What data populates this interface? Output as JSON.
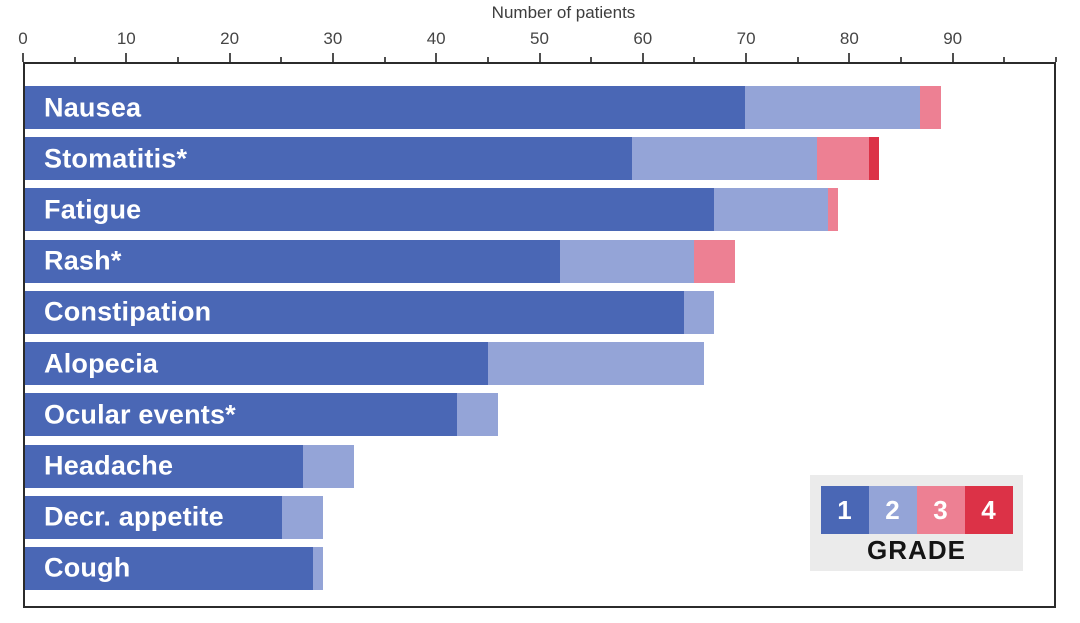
{
  "chart_data": {
    "type": "bar",
    "orientation": "horizontal",
    "stacked": true,
    "title": "Number of patients",
    "xlabel": "Number of patients",
    "xlim": [
      0,
      100
    ],
    "x_major_ticks": [
      0,
      10,
      20,
      30,
      40,
      50,
      60,
      70,
      80,
      90
    ],
    "x_minor_tick_step": 5,
    "grid": false,
    "legend_position": "bottom-right",
    "categories": [
      "Nausea",
      "Stomatitis*",
      "Fatigue",
      "Rash*",
      "Constipation",
      "Alopecia",
      "Ocular events*",
      "Headache",
      "Decr. appetite",
      "Cough"
    ],
    "series": [
      {
        "name": "Grade 1",
        "color": "#4a67b5",
        "values": [
          70,
          59,
          67,
          52,
          64,
          45,
          42,
          27,
          25,
          28
        ]
      },
      {
        "name": "Grade 2",
        "color": "#94a4d7",
        "values": [
          17,
          18,
          11,
          13,
          3,
          21,
          4,
          5,
          4,
          1
        ]
      },
      {
        "name": "Grade 3",
        "color": "#ed8093",
        "values": [
          2,
          5,
          1,
          4,
          0,
          0,
          0,
          0,
          0,
          0
        ]
      },
      {
        "name": "Grade 4",
        "color": "#dc3247",
        "values": [
          0,
          1,
          0,
          0,
          0,
          0,
          0,
          0,
          0,
          0
        ]
      }
    ],
    "totals": [
      89,
      83,
      79,
      69,
      67,
      66,
      46,
      32,
      29,
      29
    ]
  },
  "legend": {
    "grades": [
      {
        "label": "1",
        "color": "#4a67b5"
      },
      {
        "label": "2",
        "color": "#94a4d7"
      },
      {
        "label": "3",
        "color": "#ed8093"
      },
      {
        "label": "4",
        "color": "#dc3247"
      }
    ],
    "caption": "GRADE"
  },
  "colors": {
    "frame_border": "#2b2b2b",
    "tick": "#4f4f4f",
    "axis_text": "#454545",
    "legend_background": "#ebebeb",
    "bar_label_text": "#ffffff"
  }
}
